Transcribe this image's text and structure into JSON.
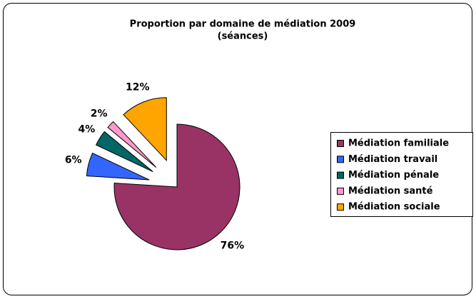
{
  "chart_data": {
    "type": "pie",
    "title": "Proportion par domaine de médiation 2009",
    "subtitle": "(séances)",
    "categories": [
      "Médiation familiale",
      "Médiation travail",
      "Médiation pénale",
      "Médiation santé",
      "Médiation sociale"
    ],
    "values": [
      76,
      6,
      4,
      2,
      12
    ],
    "value_labels": [
      "76%",
      "6%",
      "4%",
      "2%",
      "12%"
    ],
    "colors": [
      "#993366",
      "#3366ff",
      "#006666",
      "#ff99cc",
      "#ffa500"
    ],
    "exploded": [
      false,
      true,
      true,
      true,
      true
    ],
    "legend": "right"
  }
}
